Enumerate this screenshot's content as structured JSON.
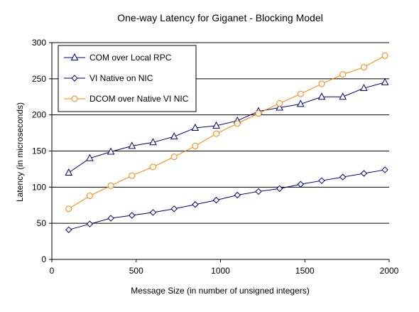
{
  "chart_data": {
    "type": "line",
    "title": "One-way Latency for Giganet - Blocking Model",
    "xlabel": "Message Size (in number of unsigned integers)",
    "ylabel": "Latency (in microseconds)",
    "xlim": [
      0,
      2000
    ],
    "ylim": [
      0,
      300
    ],
    "x_ticks": [
      0,
      500,
      1000,
      1500,
      2000
    ],
    "y_ticks": [
      0,
      50,
      100,
      150,
      200,
      250,
      300
    ],
    "grid": "horizontal",
    "legend_position": "top-left",
    "x": [
      100,
      225,
      350,
      475,
      600,
      725,
      850,
      975,
      1100,
      1225,
      1350,
      1475,
      1600,
      1725,
      1850,
      1975
    ],
    "series": [
      {
        "name": "COM over Local RPC",
        "color": "#000080",
        "marker": "triangle",
        "values": [
          120,
          140,
          149,
          157,
          162,
          170,
          182,
          185,
          192,
          205,
          210,
          215,
          225,
          225,
          237,
          245
        ]
      },
      {
        "name": "VI Native on NIC",
        "color": "#000080",
        "marker": "diamond",
        "values": [
          41,
          49,
          57,
          61,
          65,
          70,
          76,
          82,
          89,
          94,
          98,
          104,
          109,
          114,
          119,
          124
        ]
      },
      {
        "name": "DCOM over Native VI NIC",
        "color": "#ff8000",
        "marker": "circle",
        "values": [
          70,
          88,
          102,
          116,
          128,
          142,
          157,
          174,
          188,
          202,
          216,
          229,
          243,
          256,
          266,
          282
        ]
      }
    ]
  }
}
